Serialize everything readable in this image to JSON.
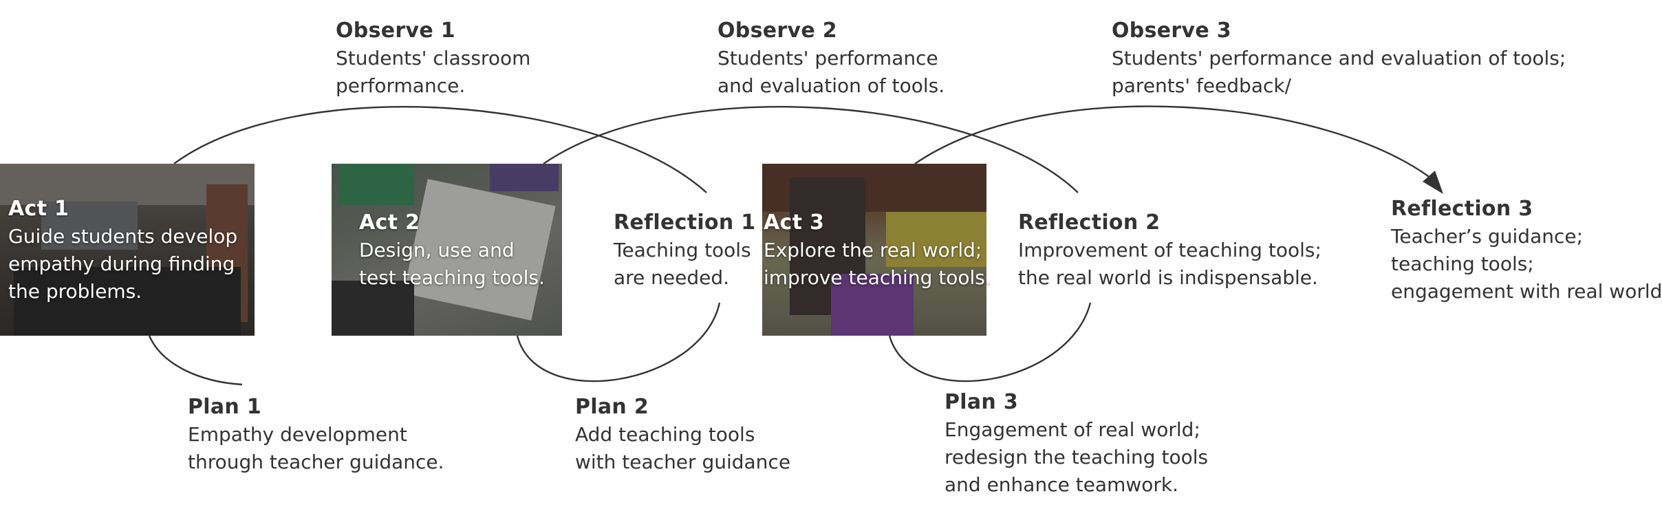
{
  "acts": [
    {
      "title": "Act 1",
      "lines": [
        "Guide students develop",
        "empathy during finding",
        "the problems."
      ]
    },
    {
      "title": "Act 2",
      "lines": [
        "Design, use and",
        "test teaching tools."
      ]
    },
    {
      "title": "Act 3",
      "lines": [
        "Explore the real world;",
        "improve teaching tools."
      ]
    }
  ],
  "observes": [
    {
      "title": "Observe 1",
      "lines": [
        "Students' classroom",
        "performance."
      ]
    },
    {
      "title": "Observe 2",
      "lines": [
        "Students' performance",
        "and evaluation of tools."
      ]
    },
    {
      "title": "Observe 3",
      "lines": [
        "Students' performance and evaluation of tools;",
        "parents' feedback/"
      ]
    }
  ],
  "reflections": [
    {
      "title": "Reflection 1",
      "lines": [
        "Teaching tools",
        "are needed."
      ]
    },
    {
      "title": "Reflection 2",
      "lines": [
        "Improvement of teaching tools;",
        "the real world is indispensable."
      ]
    },
    {
      "title": "Reflection 3",
      "lines": [
        "Teacher’s guidance;",
        "teaching tools;",
        "engagement with real world."
      ]
    }
  ],
  "plans": [
    {
      "title": "Plan 1",
      "lines": [
        "Empathy development",
        "through teacher guidance."
      ]
    },
    {
      "title": "Plan 2",
      "lines": [
        "Add teaching tools",
        "with teacher guidance"
      ]
    },
    {
      "title": "Plan 3",
      "lines": [
        "Engagement of real world;",
        "redesign the teaching tools",
        "and enhance teamwork."
      ]
    }
  ],
  "colors": {
    "text": "#333333",
    "line": "#333333",
    "photo_text": "#ffffff"
  }
}
